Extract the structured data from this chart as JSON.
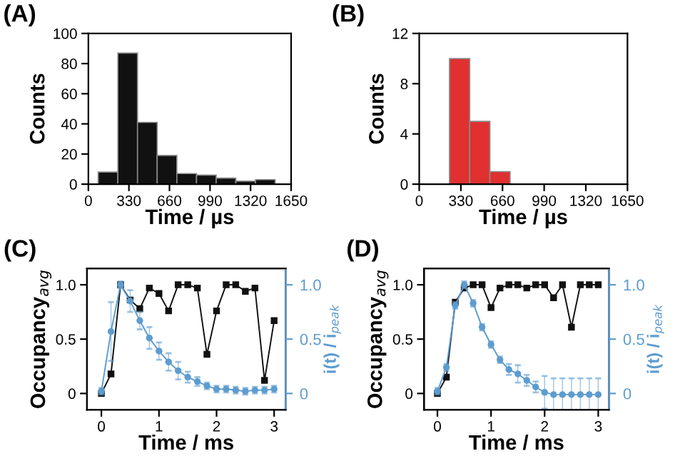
{
  "chart_data": [
    {
      "type": "histogram",
      "title": "(A)",
      "xlabel": "Time / µs",
      "ylabel": "Counts",
      "bins": [
        80,
        240,
        400,
        560,
        720,
        880,
        1040,
        1200,
        1360,
        1520
      ],
      "values": [
        8,
        87,
        41,
        19,
        7,
        6,
        4,
        2,
        3
      ],
      "color": "#111111",
      "xlim": [
        0,
        1650
      ],
      "xticks": [
        0,
        330,
        660,
        990,
        1320,
        1650
      ],
      "ylim": [
        0,
        100
      ],
      "yticks": [
        0,
        20,
        40,
        60,
        80,
        100
      ],
      "grid": false
    },
    {
      "type": "histogram",
      "title": "(B)",
      "xlabel": "Time / µs",
      "ylabel": "Counts",
      "bins": [
        240,
        400,
        560,
        720
      ],
      "values": [
        10,
        5,
        1
      ],
      "color": "#e03030",
      "xlim": [
        0,
        1650
      ],
      "xticks": [
        0,
        330,
        660,
        990,
        1320,
        1650
      ],
      "ylim": [
        0,
        12
      ],
      "yticks": [
        0,
        4,
        8,
        12
      ],
      "grid": false
    },
    {
      "type": "line",
      "title": "(C)",
      "xlabel": "Time / ms",
      "ylabel": "Occupancy$_{avg}$",
      "y2label": "i(t) / i$_{peak}$",
      "x": [
        0,
        0.167,
        0.333,
        0.5,
        0.667,
        0.833,
        1.0,
        1.167,
        1.333,
        1.5,
        1.667,
        1.833,
        2.0,
        2.167,
        2.333,
        2.5,
        2.667,
        2.833,
        3.0
      ],
      "series": [
        {
          "color": "#111111",
          "marker": "square",
          "values": [
            0,
            0.18,
            1.0,
            0.86,
            0.78,
            0.97,
            0.92,
            0.76,
            1.0,
            1.0,
            0.97,
            0.36,
            0.76,
            1.0,
            1.0,
            0.94,
            0.97,
            0.12,
            0.67
          ]
        },
        {
          "color": "#5d9cd0",
          "marker": "circle",
          "axis": "y2",
          "values": [
            0.02,
            0.57,
            1.0,
            0.85,
            0.67,
            0.51,
            0.39,
            0.29,
            0.21,
            0.15,
            0.11,
            0.07,
            0.04,
            0.04,
            0.03,
            0.02,
            0.03,
            0.03,
            0.04
          ],
          "errors": [
            0.03,
            0.27,
            0.03,
            0.1,
            0.08,
            0.1,
            0.08,
            0.08,
            0.08,
            0.05,
            0.04,
            0.03,
            0.03,
            0.03,
            0.03,
            0.03,
            0.03,
            0.03,
            0.03
          ]
        }
      ],
      "xlim": [
        -0.25,
        3.2
      ],
      "xticks": [
        0,
        1,
        2,
        3
      ],
      "ylim": [
        -0.15,
        1.15
      ],
      "yticks": [
        0,
        0.5,
        {
          "value": 1,
          "label": "1.0"
        }
      ],
      "y2lim": [
        -0.15,
        1.15
      ],
      "y2ticks": [
        0,
        0.5,
        {
          "value": 1,
          "label": "1.0"
        }
      ],
      "grid": false
    },
    {
      "type": "line",
      "title": "(D)",
      "xlabel": "Time / ms",
      "ylabel": "Occupancy$_{avg}$",
      "y2label": "i(t) / i$_{peak}$",
      "x": [
        0,
        0.167,
        0.333,
        0.5,
        0.667,
        0.833,
        1.0,
        1.167,
        1.333,
        1.5,
        1.667,
        1.833,
        2.0,
        2.167,
        2.333,
        2.5,
        2.667,
        2.833,
        3.0
      ],
      "series": [
        {
          "color": "#111111",
          "marker": "square",
          "values": [
            0,
            0.15,
            0.84,
            0.97,
            1.0,
            1.0,
            0.79,
            0.97,
            1.0,
            1.0,
            0.97,
            1.0,
            1.0,
            0.88,
            1.0,
            0.61,
            1.0,
            1.0,
            1.0
          ]
        },
        {
          "color": "#5d9cd0",
          "marker": "circle",
          "axis": "y2",
          "values": [
            0.02,
            0.24,
            0.81,
            1.0,
            0.83,
            0.61,
            0.45,
            0.31,
            0.22,
            0.18,
            0.12,
            0.06,
            0.01,
            -0.01,
            -0.01,
            -0.01,
            -0.01,
            -0.01,
            -0.01
          ],
          "errors": [
            0.03,
            0.03,
            0.03,
            0.03,
            0.03,
            0.03,
            0.03,
            0.03,
            0.05,
            0.08,
            0.05,
            0.05,
            0.15,
            0.15,
            0.15,
            0.15,
            0.15,
            0.15,
            0.15
          ]
        }
      ],
      "xlim": [
        -0.25,
        3.2
      ],
      "xticks": [
        0,
        1,
        2,
        3
      ],
      "ylim": [
        -0.15,
        1.15
      ],
      "yticks": [
        0,
        0.5,
        {
          "value": 1,
          "label": "1.0"
        }
      ],
      "y2lim": [
        -0.15,
        1.15
      ],
      "y2ticks": [
        0,
        0.5,
        {
          "value": 1,
          "label": "1.0"
        }
      ],
      "grid": false
    }
  ]
}
